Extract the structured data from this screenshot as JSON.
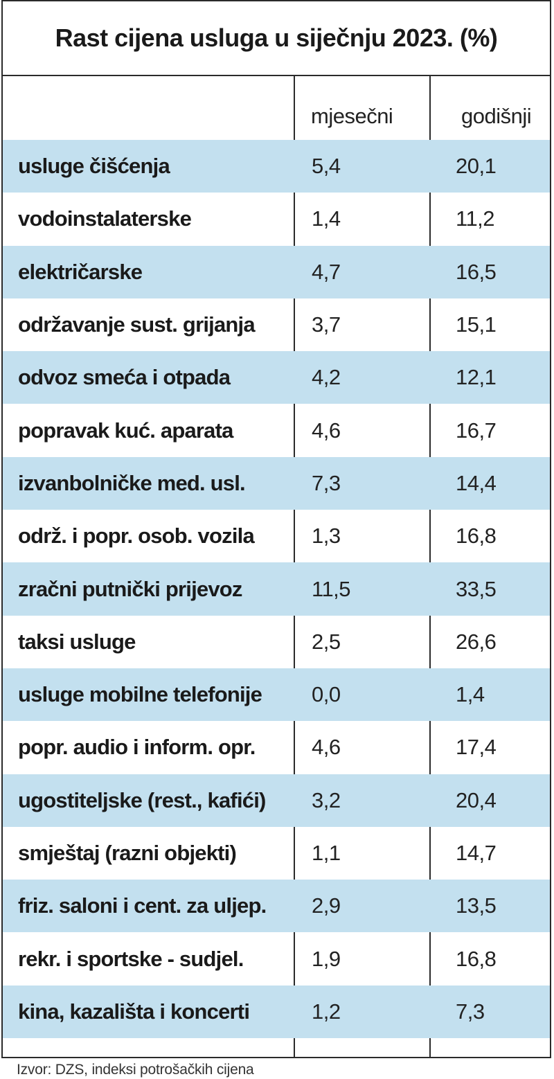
{
  "chart_data": {
    "type": "table",
    "title": "Rast cijena usluga u siječnju 2023. (%)",
    "columns": [
      "mjesečni",
      "godišnji"
    ],
    "rows": [
      {
        "label": "usluge čišćenja",
        "mjesecni": "5,4",
        "godisnji": "20,1"
      },
      {
        "label": "vodoinstalaterske",
        "mjesecni": "1,4",
        "godisnji": "11,2"
      },
      {
        "label": "električarske",
        "mjesecni": "4,7",
        "godisnji": "16,5"
      },
      {
        "label": "održavanje sust. grijanja",
        "mjesecni": "3,7",
        "godisnji": "15,1"
      },
      {
        "label": "odvoz smeća i otpada",
        "mjesecni": "4,2",
        "godisnji": "12,1"
      },
      {
        "label": "popravak kuć. aparata",
        "mjesecni": "4,6",
        "godisnji": "16,7"
      },
      {
        "label": "izvanbolničke med. usl.",
        "mjesecni": "7,3",
        "godisnji": "14,4"
      },
      {
        "label": "održ. i popr. osob. vozila",
        "mjesecni": "1,3",
        "godisnji": "16,8"
      },
      {
        "label": "zračni putnički prijevoz",
        "mjesecni": "11,5",
        "godisnji": "33,5"
      },
      {
        "label": "taksi usluge",
        "mjesecni": "2,5",
        "godisnji": "26,6"
      },
      {
        "label": "usluge mobilne telefonije",
        "mjesecni": "0,0",
        "godisnji": "1,4"
      },
      {
        "label": "popr. audio i inform. opr.",
        "mjesecni": "4,6",
        "godisnji": "17,4"
      },
      {
        "label": "ugostiteljske (rest., kafići)",
        "mjesecni": "3,2",
        "godisnji": "20,4"
      },
      {
        "label": "smještaj (razni objekti)",
        "mjesecni": "1,1",
        "godisnji": "14,7"
      },
      {
        "label": "friz. saloni i cent. za uljep.",
        "mjesecni": "2,9",
        "godisnji": "13,5"
      },
      {
        "label": "rekr. i sportske - sudjel.",
        "mjesecni": "1,9",
        "godisnji": "16,8"
      },
      {
        "label": "kina, kazališta i koncerti",
        "mjesecni": "1,2",
        "godisnji": "7,3"
      }
    ],
    "source": "Izvor: DZS, indeksi potrošačkih cijena",
    "shaded_row_color": "#c3e0ef"
  }
}
